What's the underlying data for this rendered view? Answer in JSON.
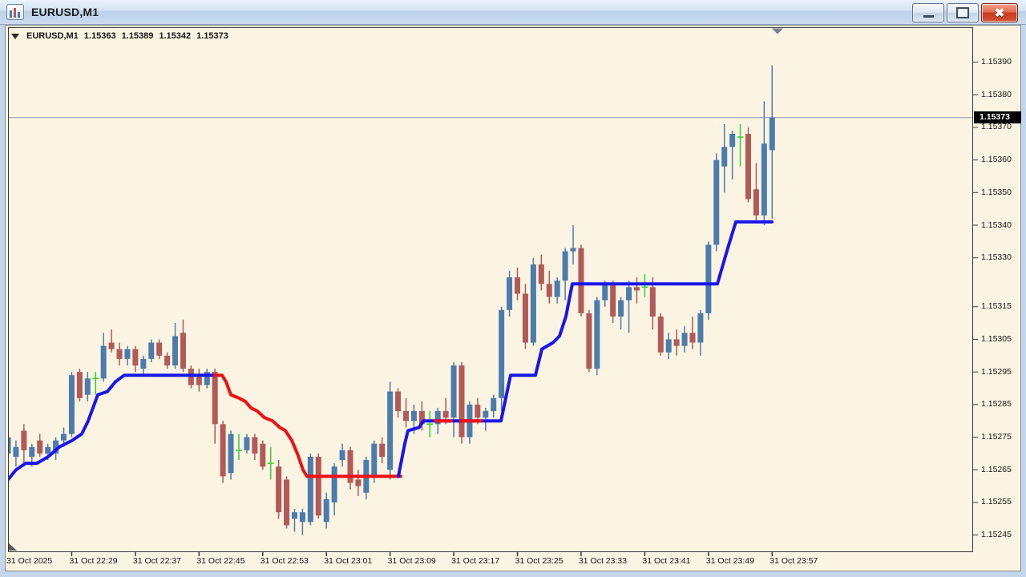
{
  "window": {
    "title": "EURUSD,M1",
    "controls": {
      "minimize": "minimize",
      "maximize": "maximize",
      "close": "close"
    }
  },
  "info_line": {
    "symbol": "EURUSD,M1",
    "open": "1.15363",
    "high": "1.15389",
    "low": "1.15342",
    "close": "1.15373"
  },
  "chart_data": {
    "type": "candlestick",
    "symbol": "EURUSD",
    "timeframe": "M1",
    "title": "EURUSD,M1 1.15363 1.15389 1.15342 1.15373",
    "grid": false,
    "legend_position": "none",
    "colors": {
      "background": "#fbf4e3",
      "bull_candle": "#4b7cab",
      "bear_candle": "#b15a57",
      "doji_candle": "#3bd53b",
      "trend_up_line": "#1a16ea",
      "trend_down_line": "#ee1111",
      "bid_line": "#8c9aa6",
      "price_tag_bg": "#000000",
      "price_tag_text": "#ffffff"
    },
    "price_axis": {
      "current": "1.15373",
      "bid_price": 1.15373,
      "ylim": [
        1.1524,
        1.15398
      ],
      "labels": [
        "1.15390",
        "1.15380",
        "1.15370",
        "1.15360",
        "1.15350",
        "1.15340",
        "1.15330",
        "1.15315",
        "1.15305",
        "1.15295",
        "1.15285",
        "1.15275",
        "1.15265",
        "1.15255",
        "1.15245"
      ]
    },
    "time_axis": {
      "labels": [
        "31 Oct 2025",
        "31 Oct 22:29",
        "31 Oct 22:37",
        "31 Oct 22:45",
        "31 Oct 22:53",
        "31 Oct 23:01",
        "31 Oct 23:09",
        "31 Oct 23:17",
        "31 Oct 23:25",
        "31 Oct 23:33",
        "31 Oct 23:41",
        "31 Oct 23:49",
        "31 Oct 23:57"
      ]
    },
    "candles_format": [
      "open",
      "high",
      "low",
      "close",
      "type(u=bull,d=bear,g=doji)"
    ],
    "candles": [
      [
        1.1527,
        1.15277,
        1.15265,
        1.15275,
        "u"
      ],
      [
        1.15269,
        1.15274,
        1.15266,
        1.15272,
        "u"
      ],
      [
        1.15277,
        1.15279,
        1.15266,
        1.15271,
        "d"
      ],
      [
        1.15269,
        1.15273,
        1.15266,
        1.15272,
        "u"
      ],
      [
        1.15274,
        1.15276,
        1.15269,
        1.1527,
        "d"
      ],
      [
        1.1527,
        1.15273,
        1.15268,
        1.15272,
        "u"
      ],
      [
        1.1527,
        1.15275,
        1.15268,
        1.15274,
        "u"
      ],
      [
        1.15274,
        1.15278,
        1.15272,
        1.15276,
        "u"
      ],
      [
        1.15276,
        1.15295,
        1.15275,
        1.15294,
        "u"
      ],
      [
        1.15295,
        1.15296,
        1.15286,
        1.15287,
        "d"
      ],
      [
        1.15288,
        1.15295,
        1.15286,
        1.15293,
        "u"
      ],
      [
        1.15293,
        1.15295,
        1.15288,
        1.15293,
        "g"
      ],
      [
        1.15293,
        1.15307,
        1.15292,
        1.15303,
        "u"
      ],
      [
        1.15304,
        1.15308,
        1.15301,
        1.15302,
        "d"
      ],
      [
        1.15302,
        1.15304,
        1.15297,
        1.15299,
        "d"
      ],
      [
        1.15299,
        1.15303,
        1.15297,
        1.15302,
        "u"
      ],
      [
        1.15302,
        1.15303,
        1.15295,
        1.15297,
        "d"
      ],
      [
        1.15296,
        1.153,
        1.15294,
        1.15299,
        "u"
      ],
      [
        1.15299,
        1.15305,
        1.15298,
        1.15304,
        "u"
      ],
      [
        1.15304,
        1.15305,
        1.15299,
        1.153,
        "d"
      ],
      [
        1.153,
        1.15301,
        1.15296,
        1.15297,
        "d"
      ],
      [
        1.15297,
        1.1531,
        1.15296,
        1.15306,
        "u"
      ],
      [
        1.15307,
        1.15311,
        1.15295,
        1.15296,
        "d"
      ],
      [
        1.15296,
        1.15297,
        1.1529,
        1.15291,
        "d"
      ],
      [
        1.15294,
        1.15296,
        1.15289,
        1.15291,
        "d"
      ],
      [
        1.15291,
        1.15296,
        1.1529,
        1.15295,
        "u"
      ],
      [
        1.15295,
        1.15296,
        1.15273,
        1.15279,
        "d"
      ],
      [
        1.15279,
        1.1528,
        1.15261,
        1.15263,
        "d"
      ],
      [
        1.15264,
        1.15277,
        1.15262,
        1.15276,
        "u"
      ],
      [
        1.15271,
        1.15276,
        1.15268,
        1.15271,
        "g"
      ],
      [
        1.15271,
        1.15276,
        1.1527,
        1.15275,
        "u"
      ],
      [
        1.15275,
        1.15276,
        1.15268,
        1.1527,
        "d"
      ],
      [
        1.15273,
        1.15274,
        1.15265,
        1.15266,
        "d"
      ],
      [
        1.15267,
        1.15272,
        1.15262,
        1.15267,
        "g"
      ],
      [
        1.15266,
        1.15268,
        1.1525,
        1.15252,
        "d"
      ],
      [
        1.15262,
        1.15263,
        1.15247,
        1.15248,
        "d"
      ],
      [
        1.1525,
        1.15253,
        1.15246,
        1.15252,
        "u"
      ],
      [
        1.15249,
        1.15253,
        1.15245,
        1.15252,
        "u"
      ],
      [
        1.15249,
        1.1527,
        1.15248,
        1.15269,
        "u"
      ],
      [
        1.15269,
        1.1527,
        1.1525,
        1.15251,
        "d"
      ],
      [
        1.15249,
        1.15258,
        1.15247,
        1.15256,
        "u"
      ],
      [
        1.15255,
        1.15267,
        1.15251,
        1.15266,
        "u"
      ],
      [
        1.15268,
        1.15273,
        1.15266,
        1.15271,
        "u"
      ],
      [
        1.15271,
        1.15272,
        1.15259,
        1.15261,
        "d"
      ],
      [
        1.15262,
        1.15265,
        1.15257,
        1.1526,
        "d"
      ],
      [
        1.15258,
        1.15269,
        1.15256,
        1.15268,
        "u"
      ],
      [
        1.15263,
        1.15274,
        1.15261,
        1.15273,
        "u"
      ],
      [
        1.15273,
        1.15275,
        1.15267,
        1.15269,
        "d"
      ],
      [
        1.15265,
        1.15292,
        1.15262,
        1.15289,
        "u"
      ],
      [
        1.15289,
        1.1529,
        1.15281,
        1.15283,
        "d"
      ],
      [
        1.15283,
        1.15287,
        1.15278,
        1.1528,
        "d"
      ],
      [
        1.1528,
        1.15285,
        1.15276,
        1.15283,
        "u"
      ],
      [
        1.15283,
        1.15286,
        1.15277,
        1.15279,
        "d"
      ],
      [
        1.15279,
        1.15283,
        1.15275,
        1.15279,
        "g"
      ],
      [
        1.15279,
        1.15284,
        1.15276,
        1.15283,
        "u"
      ],
      [
        1.15283,
        1.15287,
        1.15279,
        1.15281,
        "d"
      ],
      [
        1.15281,
        1.15298,
        1.15275,
        1.15297,
        "u"
      ],
      [
        1.15297,
        1.15298,
        1.15273,
        1.15275,
        "d"
      ],
      [
        1.15275,
        1.15286,
        1.15273,
        1.15285,
        "u"
      ],
      [
        1.15285,
        1.15287,
        1.15279,
        1.15281,
        "d"
      ],
      [
        1.15281,
        1.15284,
        1.15277,
        1.15283,
        "u"
      ],
      [
        1.15283,
        1.15288,
        1.15281,
        1.15287,
        "u"
      ],
      [
        1.15287,
        1.15315,
        1.15283,
        1.15314,
        "u"
      ],
      [
        1.15314,
        1.15326,
        1.15312,
        1.15324,
        "u"
      ],
      [
        1.15324,
        1.15327,
        1.15317,
        1.15319,
        "d"
      ],
      [
        1.15319,
        1.15322,
        1.15302,
        1.15304,
        "d"
      ],
      [
        1.15304,
        1.1533,
        1.15303,
        1.15328,
        "u"
      ],
      [
        1.15328,
        1.15331,
        1.1532,
        1.15322,
        "d"
      ],
      [
        1.15322,
        1.15326,
        1.15316,
        1.15318,
        "d"
      ],
      [
        1.15318,
        1.15324,
        1.15316,
        1.15323,
        "u"
      ],
      [
        1.15323,
        1.15333,
        1.15317,
        1.15332,
        "u"
      ],
      [
        1.15332,
        1.1534,
        1.15328,
        1.15333,
        "u"
      ],
      [
        1.15333,
        1.15334,
        1.15312,
        1.15313,
        "d"
      ],
      [
        1.15313,
        1.15314,
        1.15295,
        1.15296,
        "d"
      ],
      [
        1.15296,
        1.15318,
        1.15294,
        1.15317,
        "u"
      ],
      [
        1.15317,
        1.15323,
        1.15315,
        1.15322,
        "u"
      ],
      [
        1.15322,
        1.15323,
        1.1531,
        1.15312,
        "d"
      ],
      [
        1.15312,
        1.15318,
        1.15308,
        1.15317,
        "u"
      ],
      [
        1.15317,
        1.15323,
        1.15307,
        1.15321,
        "u"
      ],
      [
        1.15321,
        1.15324,
        1.15316,
        1.1532,
        "d"
      ],
      [
        1.1532,
        1.15325,
        1.15318,
        1.15321,
        "g"
      ],
      [
        1.15321,
        1.15324,
        1.15308,
        1.15312,
        "d"
      ],
      [
        1.15312,
        1.15313,
        1.153,
        1.15301,
        "d"
      ],
      [
        1.15301,
        1.15307,
        1.15299,
        1.15305,
        "u"
      ],
      [
        1.15305,
        1.15308,
        1.153,
        1.15303,
        "d"
      ],
      [
        1.15303,
        1.15309,
        1.15301,
        1.15307,
        "u"
      ],
      [
        1.15307,
        1.15312,
        1.15302,
        1.15304,
        "d"
      ],
      [
        1.15304,
        1.15314,
        1.153,
        1.15313,
        "u"
      ],
      [
        1.15313,
        1.15335,
        1.15311,
        1.15334,
        "u"
      ],
      [
        1.15334,
        1.15362,
        1.15332,
        1.1536,
        "u"
      ],
      [
        1.15358,
        1.15371,
        1.1535,
        1.15364,
        "u"
      ],
      [
        1.15364,
        1.15369,
        1.15354,
        1.15368,
        "u"
      ],
      [
        1.15367,
        1.15371,
        1.15358,
        1.15367,
        "g"
      ],
      [
        1.15368,
        1.1537,
        1.15347,
        1.15348,
        "d"
      ],
      [
        1.15351,
        1.15359,
        1.15341,
        1.15343,
        "d"
      ],
      [
        1.15343,
        1.15378,
        1.1534,
        1.15365,
        "u"
      ],
      [
        1.15363,
        1.15389,
        1.15342,
        1.15373,
        "u"
      ]
    ],
    "supertrend_indicator": {
      "points_format": [
        "x_px",
        "price"
      ],
      "segments": [
        {
          "dir": "up",
          "points": [
            [
              10,
              1.15262
            ],
            [
              20,
              1.15265
            ],
            [
              32,
              1.15267
            ],
            [
              46,
              1.15267
            ],
            [
              60,
              1.15269
            ],
            [
              74,
              1.15272
            ],
            [
              90,
              1.15274
            ],
            [
              102,
              1.15276
            ],
            [
              110,
              1.1528
            ],
            [
              116,
              1.15284
            ],
            [
              122,
              1.15288
            ],
            [
              134,
              1.15289
            ],
            [
              144,
              1.15292
            ],
            [
              155,
              1.15294
            ],
            [
              268,
              1.15294
            ]
          ]
        },
        {
          "dir": "down",
          "points": [
            [
              268,
              1.15294
            ],
            [
              277,
              1.15294
            ],
            [
              282,
              1.15292
            ],
            [
              288,
              1.15288
            ],
            [
              298,
              1.15287
            ],
            [
              306,
              1.15286
            ],
            [
              313,
              1.15284
            ],
            [
              321,
              1.15283
            ],
            [
              330,
              1.15281
            ],
            [
              340,
              1.1528
            ],
            [
              349,
              1.15278
            ],
            [
              356,
              1.15277
            ],
            [
              364,
              1.15274
            ],
            [
              371,
              1.1527
            ],
            [
              378,
              1.15265
            ],
            [
              383,
              1.15263
            ],
            [
              500,
              1.15263
            ]
          ]
        },
        {
          "dir": "up",
          "points": [
            [
              497,
              1.15263
            ],
            [
              505,
              1.15273
            ],
            [
              509,
              1.15277
            ],
            [
              523,
              1.15278
            ],
            [
              528,
              1.1528
            ],
            [
              625,
              1.1528
            ],
            [
              637,
              1.15294
            ],
            [
              668,
              1.15294
            ],
            [
              676,
              1.15302
            ],
            [
              690,
              1.15304
            ],
            [
              698,
              1.15306
            ],
            [
              706,
              1.15312
            ],
            [
              714,
              1.15322
            ],
            [
              895,
              1.15322
            ],
            [
              908,
              1.15333
            ],
            [
              918,
              1.15341
            ],
            [
              963,
              1.15341
            ]
          ]
        },
        {
          "dir": "down",
          "points": [
            [
              543,
              1.1528
            ],
            [
              563,
              1.1528
            ]
          ]
        },
        {
          "dir": "down",
          "points": [
            [
              575,
              1.1528
            ],
            [
              600,
              1.1528
            ]
          ]
        }
      ]
    }
  }
}
